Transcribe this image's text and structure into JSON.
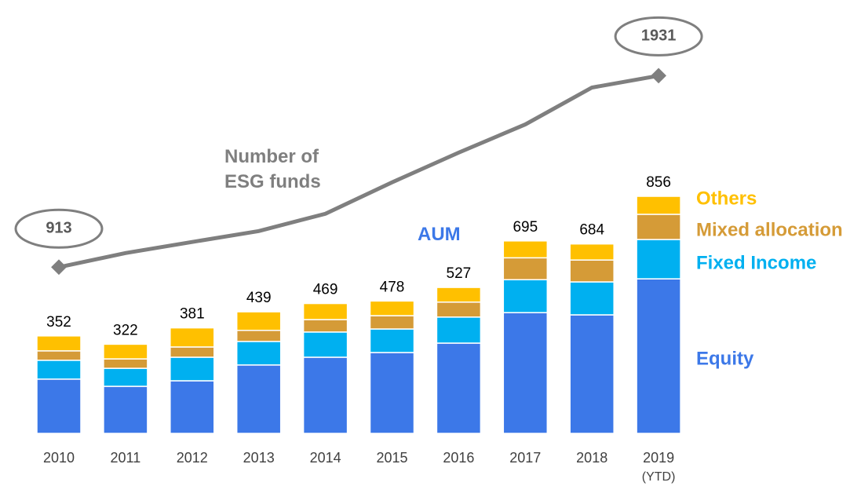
{
  "chart_data": {
    "type": "stacked_bar_line",
    "categories": [
      "2010",
      "2011",
      "2012",
      "2013",
      "2014",
      "2015",
      "2016",
      "2017",
      "2018",
      "2019"
    ],
    "category_note": "(YTD)",
    "bar_label": "AUM",
    "series": [
      {
        "name": "Equity",
        "color": "#3c78e8",
        "values": [
          196,
          170,
          190,
          247,
          275,
          292,
          326,
          436,
          428,
          558
        ]
      },
      {
        "name": "Fixed Income",
        "color": "#00b0f0",
        "values": [
          68,
          65,
          85,
          85,
          91,
          85,
          94,
          119,
          119,
          142
        ]
      },
      {
        "name": "Mixed allocation",
        "color": "#d59b37",
        "values": [
          34,
          34,
          37,
          40,
          45,
          48,
          54,
          79,
          79,
          91
        ]
      },
      {
        "name": "Others",
        "color": "#ffc000",
        "values": [
          54,
          53,
          69,
          67,
          58,
          53,
          53,
          61,
          58,
          65
        ]
      },
      {
        "name": "Number of ESG funds",
        "color": "#7f7f7f",
        "type": "line",
        "axis": "y2",
        "values": [
          913,
          988,
          1047,
          1105,
          1197,
          1364,
          1522,
          1672,
          1868,
          1931
        ],
        "value_labels": [
          "913",
          null,
          null,
          null,
          null,
          null,
          null,
          null,
          null,
          "1931"
        ]
      }
    ],
    "totals": [
      352,
      322,
      381,
      439,
      469,
      478,
      527,
      695,
      684,
      856
    ],
    "ylim": [
      0,
      900
    ],
    "y2lim": [
      0,
      2300
    ]
  }
}
